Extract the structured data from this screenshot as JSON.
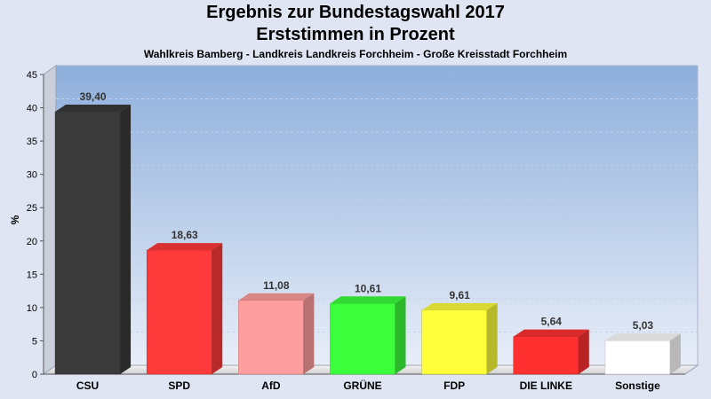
{
  "header": {
    "title": "Ergebnis zur Bundestagswahl 2017",
    "subtitle": "Erststimmen in Prozent",
    "region": "Wahlkreis Bamberg - Landkreis Landkreis Forchheim - Große Kreisstadt Forchheim"
  },
  "chart_data": {
    "type": "bar",
    "title": "Ergebnis zur Bundestagswahl 2017",
    "subtitle": "Erststimmen in Prozent",
    "xlabel": "",
    "ylabel": "%",
    "ylim": [
      0,
      45
    ],
    "yticks": [
      0,
      5,
      10,
      15,
      20,
      25,
      30,
      35,
      40,
      45
    ],
    "grid": true,
    "categories": [
      "CSU",
      "SPD",
      "AfD",
      "GRÜNE",
      "FDP",
      "DIE LINKE",
      "Sonstige"
    ],
    "values": [
      39.4,
      18.63,
      11.08,
      10.61,
      9.61,
      5.64,
      5.03
    ],
    "value_labels": [
      "39,40",
      "18,63",
      "11,08",
      "10,61",
      "9,61",
      "5,64",
      "5,03"
    ],
    "colors": [
      "#3a3a3a",
      "#ff3a3a",
      "#ff9e9e",
      "#3cff3c",
      "#ffff3c",
      "#ff3030",
      "#ffffff"
    ]
  }
}
